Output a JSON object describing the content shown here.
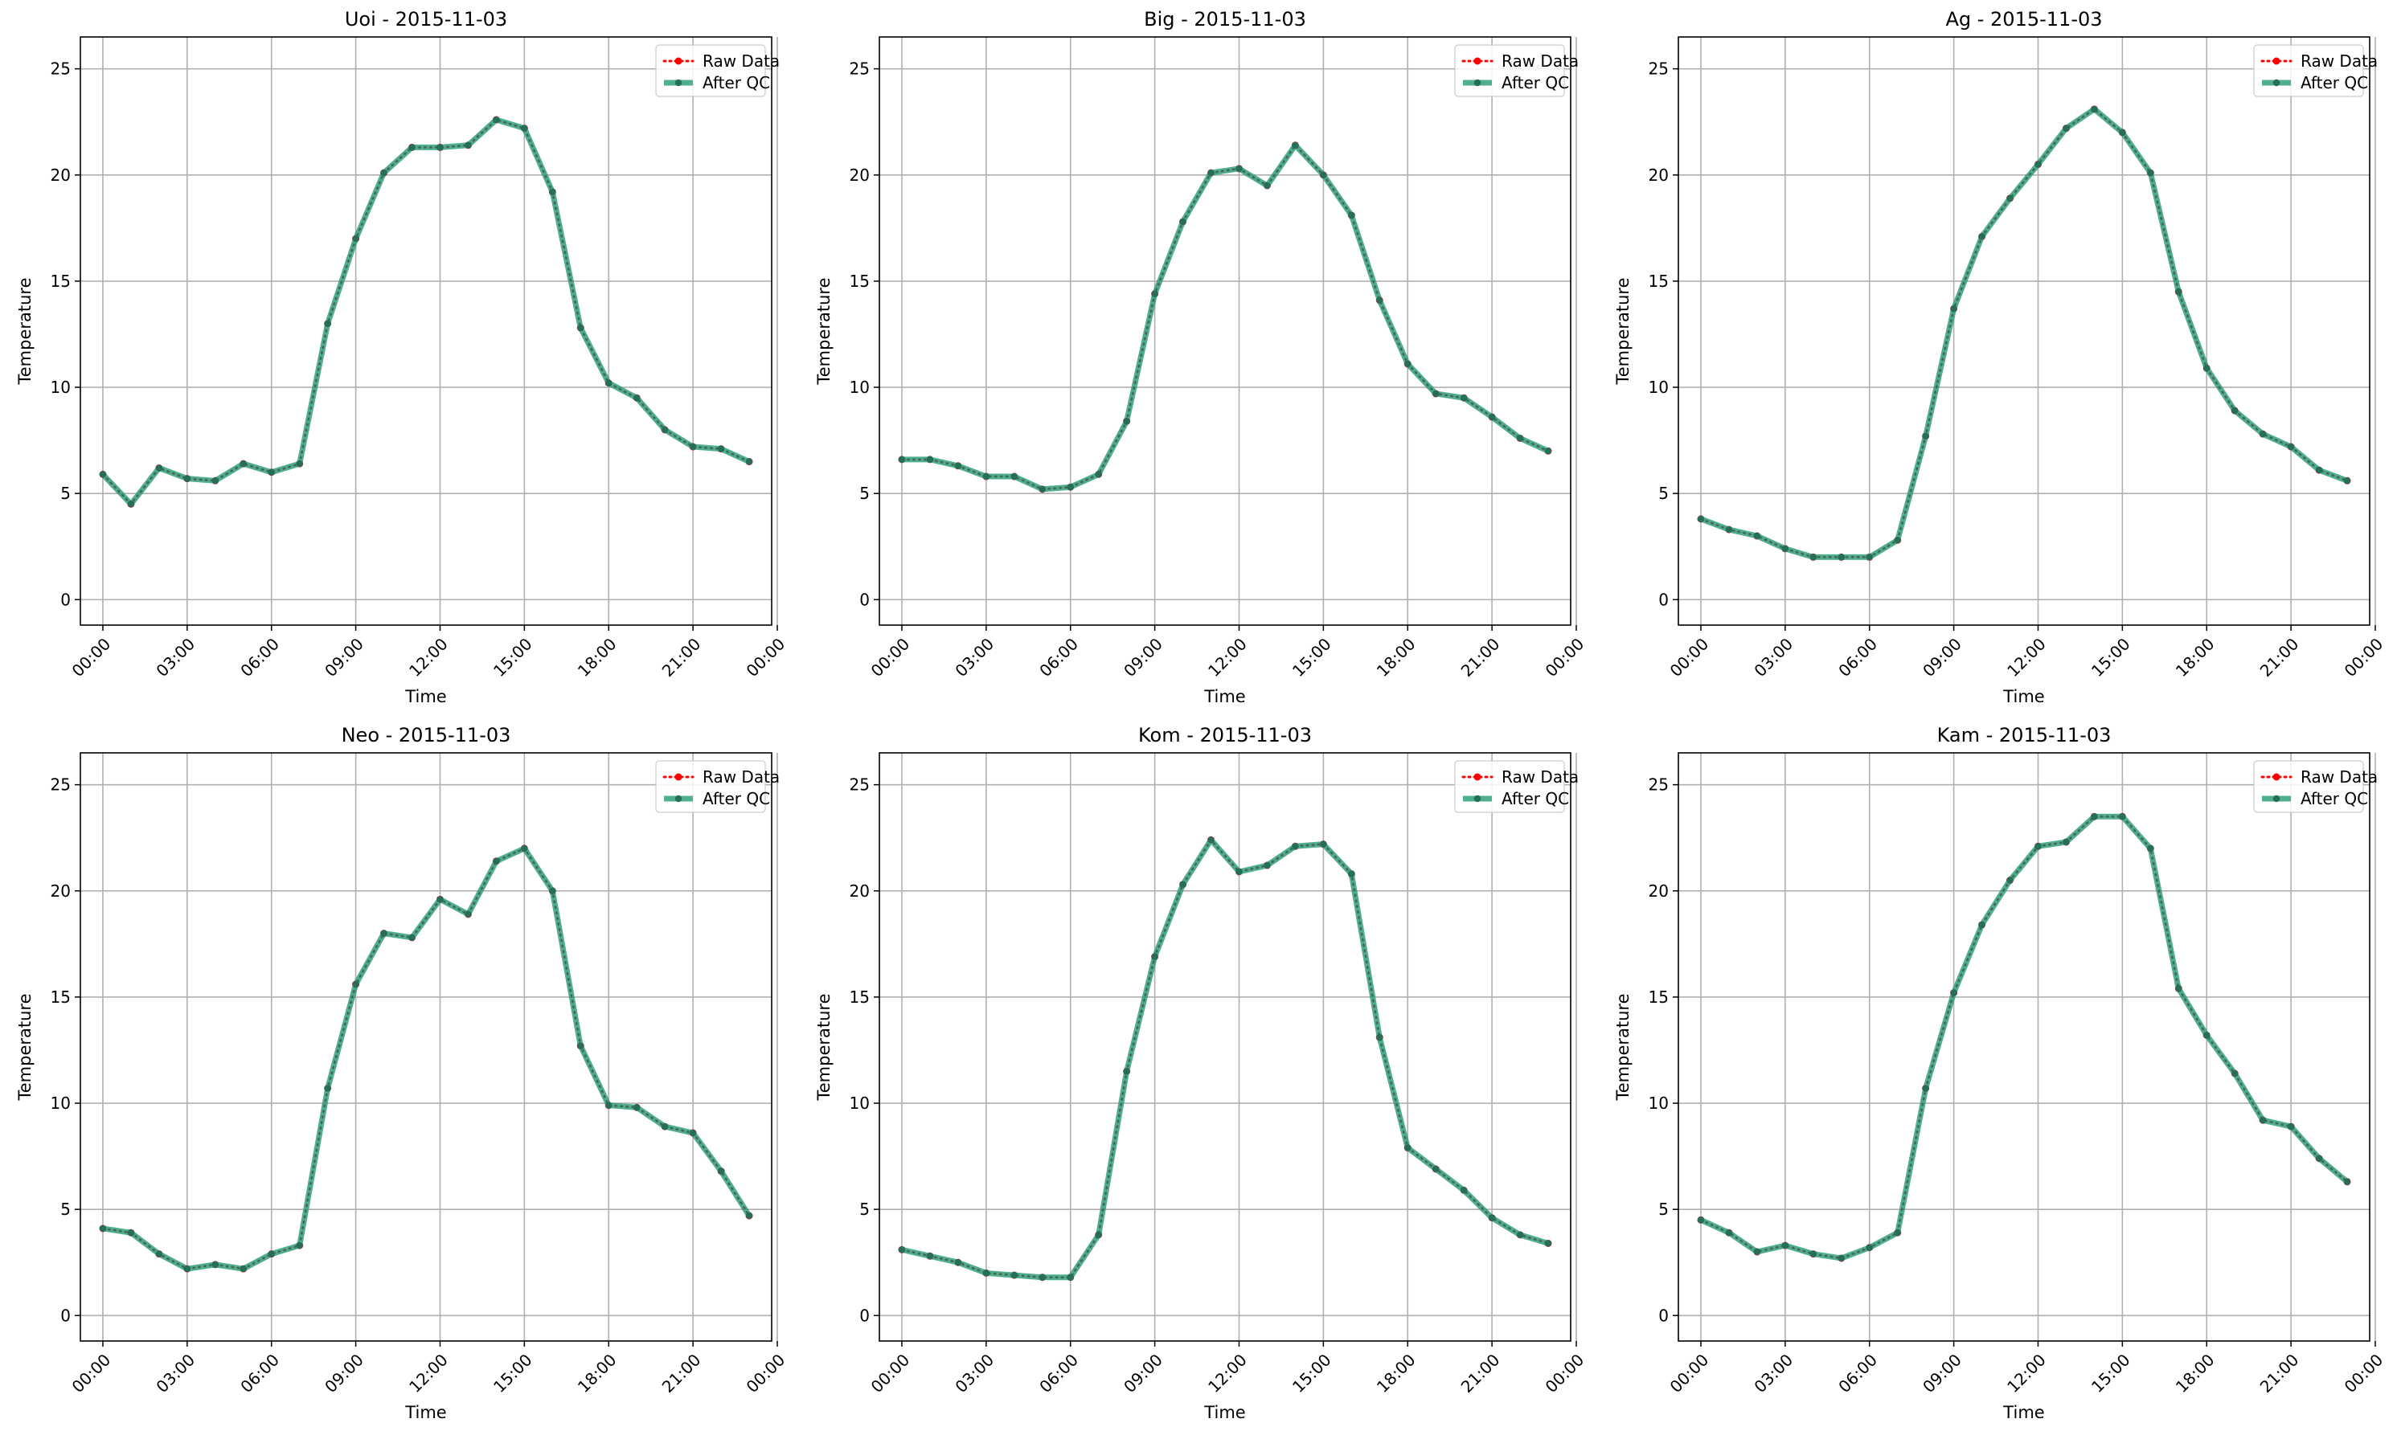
{
  "chart_data": [
    {
      "type": "line",
      "title": "Uoi - 2015-11-03",
      "xlabel": "Time",
      "ylabel": "Temperature",
      "ylim": [
        -1.2,
        26.5
      ],
      "xlim": [
        -0.8,
        23.8
      ],
      "yticks": [
        0,
        5,
        10,
        15,
        20,
        25
      ],
      "xticks": [
        0,
        3,
        6,
        9,
        12,
        15,
        18,
        21,
        24
      ],
      "xtick_labels": [
        "00:00",
        "03:00",
        "06:00",
        "09:00",
        "12:00",
        "15:00",
        "18:00",
        "21:00",
        "00:00"
      ],
      "grid": true,
      "legend": "top-right",
      "x": [
        0,
        1,
        2,
        3,
        4,
        5,
        6,
        7,
        8,
        9,
        10,
        11,
        12,
        13,
        14,
        15,
        16,
        17,
        18,
        19,
        20,
        21,
        22,
        23
      ],
      "series": [
        {
          "name": "Raw Data",
          "color": "#ff0000",
          "values": [
            5.9,
            4.5,
            6.2,
            5.7,
            5.6,
            6.4,
            6.0,
            6.4,
            13.0,
            17.0,
            20.1,
            21.3,
            21.3,
            21.4,
            22.6,
            22.2,
            19.2,
            12.8,
            10.2,
            9.5,
            8.0,
            7.2,
            7.1,
            6.5
          ]
        },
        {
          "name": "After QC",
          "color": "#2a9d78",
          "values": [
            5.9,
            4.5,
            6.2,
            5.7,
            5.6,
            6.4,
            6.0,
            6.4,
            13.0,
            17.0,
            20.1,
            21.3,
            21.3,
            21.4,
            22.6,
            22.2,
            19.2,
            12.8,
            10.2,
            9.5,
            8.0,
            7.2,
            7.1,
            6.5
          ]
        }
      ]
    },
    {
      "type": "line",
      "title": "Big - 2015-11-03",
      "xlabel": "Time",
      "ylabel": "Temperature",
      "ylim": [
        -1.2,
        26.5
      ],
      "xlim": [
        -0.8,
        23.8
      ],
      "yticks": [
        0,
        5,
        10,
        15,
        20,
        25
      ],
      "xticks": [
        0,
        3,
        6,
        9,
        12,
        15,
        18,
        21,
        24
      ],
      "xtick_labels": [
        "00:00",
        "03:00",
        "06:00",
        "09:00",
        "12:00",
        "15:00",
        "18:00",
        "21:00",
        "00:00"
      ],
      "grid": true,
      "legend": "top-right",
      "x": [
        0,
        1,
        2,
        3,
        4,
        5,
        6,
        7,
        8,
        9,
        10,
        11,
        12,
        13,
        14,
        15,
        16,
        17,
        18,
        19,
        20,
        21,
        22,
        23
      ],
      "series": [
        {
          "name": "Raw Data",
          "color": "#ff0000",
          "values": [
            6.6,
            6.6,
            6.3,
            5.8,
            5.8,
            5.2,
            5.3,
            5.9,
            8.4,
            14.4,
            17.8,
            20.1,
            20.3,
            19.5,
            21.4,
            20.0,
            18.1,
            14.1,
            11.1,
            9.7,
            9.5,
            8.6,
            7.6,
            7.0
          ]
        },
        {
          "name": "After QC",
          "color": "#2a9d78",
          "values": [
            6.6,
            6.6,
            6.3,
            5.8,
            5.8,
            5.2,
            5.3,
            5.9,
            8.4,
            14.4,
            17.8,
            20.1,
            20.3,
            19.5,
            21.4,
            20.0,
            18.1,
            14.1,
            11.1,
            9.7,
            9.5,
            8.6,
            7.6,
            7.0
          ]
        }
      ]
    },
    {
      "type": "line",
      "title": "Ag - 2015-11-03",
      "xlabel": "Time",
      "ylabel": "Temperature",
      "ylim": [
        -1.2,
        26.5
      ],
      "xlim": [
        -0.8,
        23.8
      ],
      "yticks": [
        0,
        5,
        10,
        15,
        20,
        25
      ],
      "xticks": [
        0,
        3,
        6,
        9,
        12,
        15,
        18,
        21,
        24
      ],
      "xtick_labels": [
        "00:00",
        "03:00",
        "06:00",
        "09:00",
        "12:00",
        "15:00",
        "18:00",
        "21:00",
        "00:00"
      ],
      "grid": true,
      "legend": "top-right",
      "x": [
        0,
        1,
        2,
        3,
        4,
        5,
        6,
        7,
        8,
        9,
        10,
        11,
        12,
        13,
        14,
        15,
        16,
        17,
        18,
        19,
        20,
        21,
        22,
        23
      ],
      "series": [
        {
          "name": "Raw Data",
          "color": "#ff0000",
          "values": [
            3.8,
            3.3,
            3.0,
            2.4,
            2.0,
            2.0,
            2.0,
            2.8,
            7.7,
            13.7,
            17.1,
            18.9,
            20.5,
            22.2,
            23.1,
            22.0,
            20.1,
            14.5,
            10.9,
            8.9,
            7.8,
            7.2,
            6.1,
            5.6
          ]
        },
        {
          "name": "After QC",
          "color": "#2a9d78",
          "values": [
            3.8,
            3.3,
            3.0,
            2.4,
            2.0,
            2.0,
            2.0,
            2.8,
            7.7,
            13.7,
            17.1,
            18.9,
            20.5,
            22.2,
            23.1,
            22.0,
            20.1,
            14.5,
            10.9,
            8.9,
            7.8,
            7.2,
            6.1,
            5.6
          ]
        }
      ]
    },
    {
      "type": "line",
      "title": "Neo - 2015-11-03",
      "xlabel": "Time",
      "ylabel": "Temperature",
      "ylim": [
        -1.2,
        26.5
      ],
      "xlim": [
        -0.8,
        23.8
      ],
      "yticks": [
        0,
        5,
        10,
        15,
        20,
        25
      ],
      "xticks": [
        0,
        3,
        6,
        9,
        12,
        15,
        18,
        21,
        24
      ],
      "xtick_labels": [
        "00:00",
        "03:00",
        "06:00",
        "09:00",
        "12:00",
        "15:00",
        "18:00",
        "21:00",
        "00:00"
      ],
      "grid": true,
      "legend": "top-right",
      "x": [
        0,
        1,
        2,
        3,
        4,
        5,
        6,
        7,
        8,
        9,
        10,
        11,
        12,
        13,
        14,
        15,
        16,
        17,
        18,
        19,
        20,
        21,
        22,
        23
      ],
      "series": [
        {
          "name": "Raw Data",
          "color": "#ff0000",
          "values": [
            4.1,
            3.9,
            2.9,
            2.2,
            2.4,
            2.2,
            2.9,
            3.3,
            10.7,
            15.6,
            18.0,
            17.8,
            19.6,
            18.9,
            21.4,
            22.0,
            20.0,
            12.7,
            9.9,
            9.8,
            8.9,
            8.6,
            6.8,
            4.7
          ]
        },
        {
          "name": "After QC",
          "color": "#2a9d78",
          "values": [
            4.1,
            3.9,
            2.9,
            2.2,
            2.4,
            2.2,
            2.9,
            3.3,
            10.7,
            15.6,
            18.0,
            17.8,
            19.6,
            18.9,
            21.4,
            22.0,
            20.0,
            12.7,
            9.9,
            9.8,
            8.9,
            8.6,
            6.8,
            4.7
          ]
        }
      ]
    },
    {
      "type": "line",
      "title": "Kom - 2015-11-03",
      "xlabel": "Time",
      "ylabel": "Temperature",
      "ylim": [
        -1.2,
        26.5
      ],
      "xlim": [
        -0.8,
        23.8
      ],
      "yticks": [
        0,
        5,
        10,
        15,
        20,
        25
      ],
      "xticks": [
        0,
        3,
        6,
        9,
        12,
        15,
        18,
        21,
        24
      ],
      "xtick_labels": [
        "00:00",
        "03:00",
        "06:00",
        "09:00",
        "12:00",
        "15:00",
        "18:00",
        "21:00",
        "00:00"
      ],
      "grid": true,
      "legend": "top-right",
      "x": [
        0,
        1,
        2,
        3,
        4,
        5,
        6,
        7,
        8,
        9,
        10,
        11,
        12,
        13,
        14,
        15,
        16,
        17,
        18,
        19,
        20,
        21,
        22,
        23
      ],
      "series": [
        {
          "name": "Raw Data",
          "color": "#ff0000",
          "values": [
            3.1,
            2.8,
            2.5,
            2.0,
            1.9,
            1.8,
            1.8,
            3.8,
            11.5,
            16.9,
            20.3,
            22.4,
            20.9,
            21.2,
            22.1,
            22.2,
            20.8,
            13.1,
            7.9,
            6.9,
            5.9,
            4.6,
            3.8,
            3.4
          ]
        },
        {
          "name": "After QC",
          "color": "#2a9d78",
          "values": [
            3.1,
            2.8,
            2.5,
            2.0,
            1.9,
            1.8,
            1.8,
            3.8,
            11.5,
            16.9,
            20.3,
            22.4,
            20.9,
            21.2,
            22.1,
            22.2,
            20.8,
            13.1,
            7.9,
            6.9,
            5.9,
            4.6,
            3.8,
            3.4
          ]
        }
      ]
    },
    {
      "type": "line",
      "title": "Kam - 2015-11-03",
      "xlabel": "Time",
      "ylabel": "Temperature",
      "ylim": [
        -1.2,
        26.5
      ],
      "xlim": [
        -0.8,
        23.8
      ],
      "yticks": [
        0,
        5,
        10,
        15,
        20,
        25
      ],
      "xticks": [
        0,
        3,
        6,
        9,
        12,
        15,
        18,
        21,
        24
      ],
      "xtick_labels": [
        "00:00",
        "03:00",
        "06:00",
        "09:00",
        "12:00",
        "15:00",
        "18:00",
        "21:00",
        "00:00"
      ],
      "grid": true,
      "legend": "top-right",
      "x": [
        0,
        1,
        2,
        3,
        4,
        5,
        6,
        7,
        8,
        9,
        10,
        11,
        12,
        13,
        14,
        15,
        16,
        17,
        18,
        19,
        20,
        21,
        22,
        23
      ],
      "series": [
        {
          "name": "Raw Data",
          "color": "#ff0000",
          "values": [
            4.5,
            3.9,
            3.0,
            3.3,
            2.9,
            2.7,
            3.2,
            3.9,
            10.7,
            15.2,
            18.4,
            20.5,
            22.1,
            22.3,
            23.5,
            23.5,
            22.0,
            15.4,
            13.2,
            11.4,
            9.2,
            8.9,
            7.4,
            6.3
          ]
        },
        {
          "name": "After QC",
          "color": "#2a9d78",
          "values": [
            4.5,
            3.9,
            3.0,
            3.3,
            2.9,
            2.7,
            3.2,
            3.9,
            10.7,
            15.2,
            18.4,
            20.5,
            22.1,
            22.3,
            23.5,
            23.5,
            22.0,
            15.4,
            13.2,
            11.4,
            9.2,
            8.9,
            7.4,
            6.3
          ]
        }
      ]
    }
  ]
}
